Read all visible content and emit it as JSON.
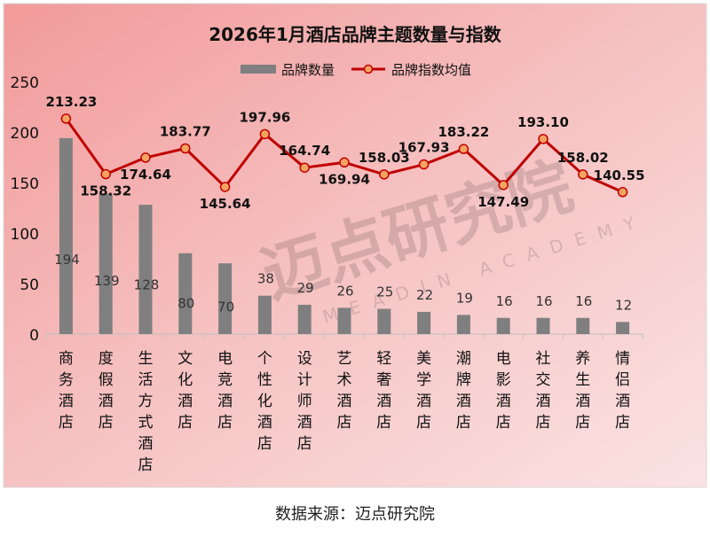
{
  "chart_data": {
    "type": "bar",
    "title": "2026年1月酒店品牌主题数量与指数",
    "categories": [
      "商务酒店",
      "度假酒店",
      "生活方式酒店",
      "文化酒店",
      "电竞酒店",
      "个性化酒店",
      "设计师酒店",
      "艺术酒店",
      "轻奢酒店",
      "美学酒店",
      "潮牌酒店",
      "电影酒店",
      "社交酒店",
      "养生酒店",
      "情侣酒店"
    ],
    "series": [
      {
        "name": "品牌数量",
        "kind": "bar",
        "values": [
          194,
          139,
          128,
          80,
          70,
          38,
          29,
          26,
          25,
          22,
          19,
          16,
          16,
          16,
          12
        ]
      },
      {
        "name": "品牌指数均值",
        "kind": "line",
        "values": [
          213.23,
          158.32,
          174.64,
          183.77,
          145.64,
          197.96,
          164.74,
          169.94,
          158.03,
          167.93,
          183.22,
          147.49,
          193.1,
          158.02,
          140.55
        ]
      }
    ],
    "index_labels": [
      "213.23",
      "158.32",
      "174.64",
      "183.77",
      "145.64",
      "197.96",
      "164.74",
      "169.94",
      "158.03",
      "167.93",
      "183.22",
      "147.49",
      "193.10",
      "158.02",
      "140.55"
    ],
    "ylim": [
      0,
      250
    ],
    "yticks": [
      "0",
      "50",
      "100",
      "150",
      "200",
      "250"
    ],
    "legend_position": "top-center",
    "grid": false,
    "colors": {
      "bar": "#7f7f7f",
      "line": "#c00000",
      "marker_fill": "#f4a460",
      "background": "#f5c6c6"
    }
  },
  "watermark": {
    "cn": "迈点研究院",
    "en": "MEADIN ACADEMY"
  },
  "source_note": "数据来源：迈点研究院"
}
